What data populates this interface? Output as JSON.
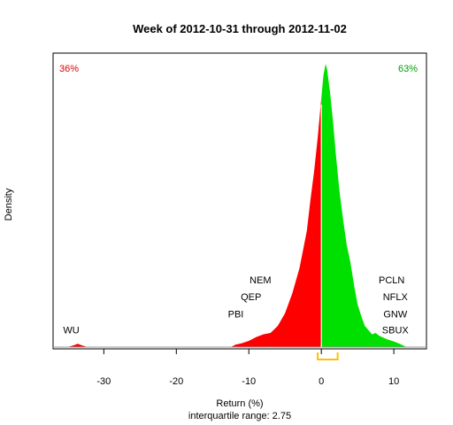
{
  "chart_data": {
    "type": "area",
    "title": "Week of 2012-10-31 through 2012-11-02",
    "xlabel": "Return (%)",
    "ylabel": "Density",
    "subtitle": "interquartile range: 2.75",
    "xlim": [
      -37,
      14.5
    ],
    "ylim": [
      0,
      1
    ],
    "xticks": [
      -30,
      -20,
      -10,
      0,
      10
    ],
    "grid": false,
    "negative_share": "36%",
    "positive_share": "63%",
    "colors": {
      "negative": "#ff0000",
      "positive": "#00e000",
      "iqr_marker": "#ffc000",
      "negative_text": "#e00000",
      "positive_text": "#00a000"
    },
    "iqr_marker_range": [
      -0.5,
      2.25
    ],
    "density_curve": [
      [
        -37,
        0.0
      ],
      [
        -35,
        0.0
      ],
      [
        -34.2,
        0.006
      ],
      [
        -33.6,
        0.012
      ],
      [
        -33,
        0.006
      ],
      [
        -32.2,
        0.0
      ],
      [
        -14,
        0.0
      ],
      [
        -12.5,
        0.0
      ],
      [
        -11.8,
        0.009
      ],
      [
        -11,
        0.013
      ],
      [
        -10,
        0.022
      ],
      [
        -9,
        0.035
      ],
      [
        -8,
        0.045
      ],
      [
        -7,
        0.05
      ],
      [
        -6,
        0.075
      ],
      [
        -5,
        0.12
      ],
      [
        -4,
        0.19
      ],
      [
        -3,
        0.28
      ],
      [
        -2,
        0.41
      ],
      [
        -1.5,
        0.52
      ],
      [
        -1,
        0.62
      ],
      [
        -0.5,
        0.74
      ],
      [
        0,
        0.88
      ],
      [
        0.3,
        0.96
      ],
      [
        0.6,
        1.0
      ],
      [
        0.8,
        0.98
      ],
      [
        1.2,
        0.9
      ],
      [
        1.6,
        0.8
      ],
      [
        2,
        0.68
      ],
      [
        2.5,
        0.55
      ],
      [
        3,
        0.45
      ],
      [
        3.5,
        0.36
      ],
      [
        4,
        0.3
      ],
      [
        4.5,
        0.22
      ],
      [
        5,
        0.15
      ],
      [
        5.5,
        0.11
      ],
      [
        6,
        0.075
      ],
      [
        6.5,
        0.06
      ],
      [
        7,
        0.045
      ],
      [
        7.5,
        0.05
      ],
      [
        8,
        0.04
      ],
      [
        9,
        0.028
      ],
      [
        10,
        0.02
      ],
      [
        10.8,
        0.012
      ],
      [
        11.6,
        0.002
      ],
      [
        12,
        0.0
      ],
      [
        14.5,
        0.0
      ]
    ],
    "annotations": [
      {
        "label": "WU",
        "x": -34.5,
        "y": 0.048
      },
      {
        "label": "PBI",
        "x": -11.8,
        "y": 0.105
      },
      {
        "label": "QEP",
        "x": -9.7,
        "y": 0.165
      },
      {
        "label": "NEM",
        "x": -8.4,
        "y": 0.225
      },
      {
        "label": "PCLN",
        "x": 9.7,
        "y": 0.225
      },
      {
        "label": "NFLX",
        "x": 10.2,
        "y": 0.165
      },
      {
        "label": "GNW",
        "x": 10.2,
        "y": 0.105
      },
      {
        "label": "SBUX",
        "x": 10.2,
        "y": 0.048
      }
    ]
  }
}
